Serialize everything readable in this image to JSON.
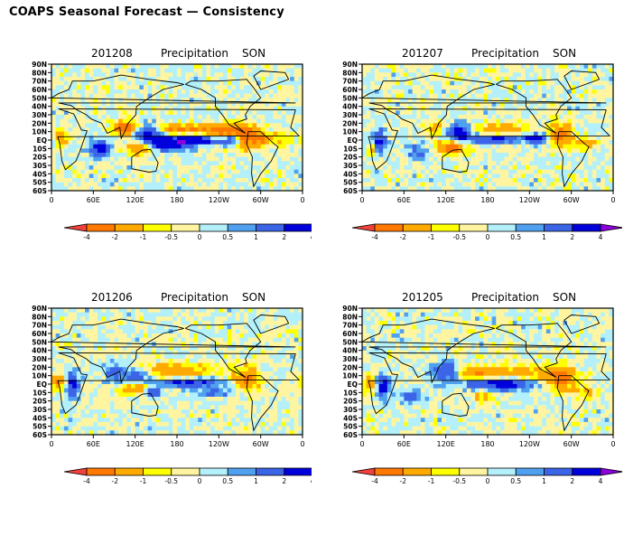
{
  "title": "COAPS Seasonal Forecast — Consistency",
  "colors": {
    "lt_neg4": "#f0413c",
    "neg4_neg2": "#ff7800",
    "neg2_neg1": "#ffaa00",
    "neg1_neg05": "#ffff00",
    "neg05_0": "#fff5a0",
    "0_05": "#b4f0fa",
    "05_1": "#50a0f0",
    "1_2": "#3c64e6",
    "2_4": "#0000dc",
    "gt_4": "#8c00dc"
  },
  "chart_data": [
    {
      "type": "heatmap",
      "date": "201208",
      "variable": "Precipitation",
      "season": "SON",
      "lat_labels": [
        "90N",
        "80N",
        "70N",
        "60N",
        "50N",
        "40N",
        "30N",
        "20N",
        "10N",
        "EQ",
        "10S",
        "20S",
        "30S",
        "40S",
        "50S",
        "60S"
      ],
      "lon_labels": [
        "0",
        "60E",
        "120E",
        "180",
        "120W",
        "60W",
        "0"
      ],
      "colorbar": {
        "levels": [
          "-4",
          "-2",
          "-1",
          "-0.5",
          "0",
          "0.5",
          "1",
          "2",
          "4"
        ]
      }
    },
    {
      "type": "heatmap",
      "date": "201207",
      "variable": "Precipitation",
      "season": "SON",
      "lat_labels": [
        "90N",
        "80N",
        "70N",
        "60N",
        "50N",
        "40N",
        "30N",
        "20N",
        "10N",
        "EQ",
        "10S",
        "20S",
        "30S",
        "40S",
        "50S",
        "60S"
      ],
      "lon_labels": [
        "0",
        "60E",
        "120E",
        "180",
        "120W",
        "60W",
        "0"
      ],
      "colorbar": {
        "levels": [
          "-4",
          "-2",
          "-1",
          "-0.5",
          "0",
          "0.5",
          "1",
          "2",
          "4"
        ]
      }
    },
    {
      "type": "heatmap",
      "date": "201206",
      "variable": "Precipitation",
      "season": "SON",
      "lat_labels": [
        "90N",
        "80N",
        "70N",
        "60N",
        "50N",
        "40N",
        "30N",
        "20N",
        "10N",
        "EQ",
        "10S",
        "20S",
        "30S",
        "40S",
        "50S",
        "60S"
      ],
      "lon_labels": [
        "0",
        "60E",
        "120E",
        "180",
        "120W",
        "60W",
        "0"
      ],
      "colorbar": {
        "levels": [
          "-4",
          "-2",
          "-1",
          "-0.5",
          "0",
          "0.5",
          "1",
          "2",
          "4"
        ]
      }
    },
    {
      "type": "heatmap",
      "date": "201205",
      "variable": "Precipitation",
      "season": "SON",
      "lat_labels": [
        "90N",
        "80N",
        "70N",
        "60N",
        "50N",
        "40N",
        "30N",
        "20N",
        "10N",
        "EQ",
        "10S",
        "20S",
        "30S",
        "40S",
        "50S",
        "60S"
      ],
      "lon_labels": [
        "0",
        "60E",
        "120E",
        "180",
        "120W",
        "60W",
        "0"
      ],
      "colorbar": {
        "levels": [
          "-4",
          "-2",
          "-1",
          "-0.5",
          "0",
          "0.5",
          "1",
          "2",
          "4"
        ]
      }
    }
  ]
}
